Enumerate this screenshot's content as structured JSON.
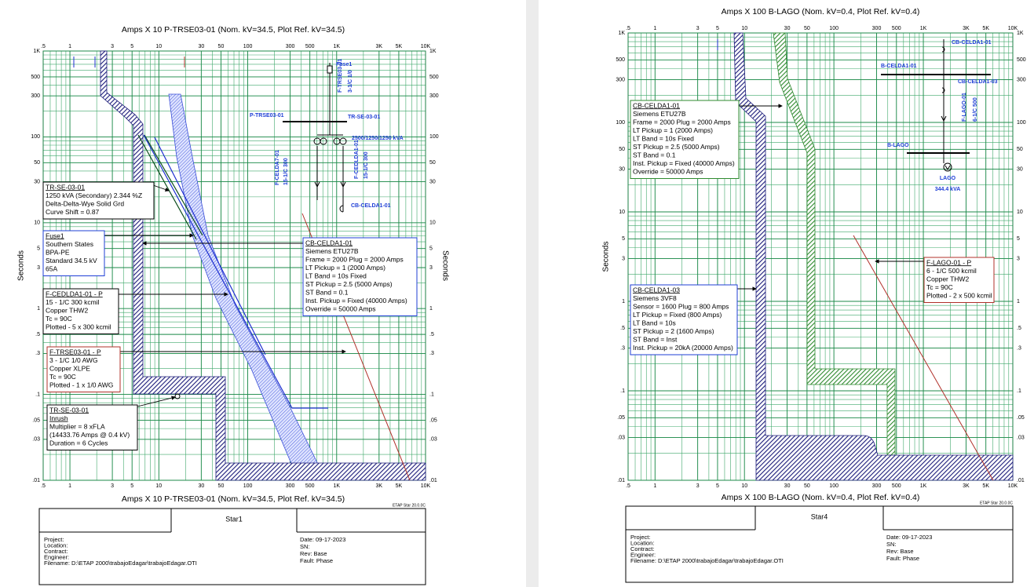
{
  "axes": {
    "x_ticks": [
      {
        "value": 0.5,
        "label": ".5"
      },
      {
        "value": 1,
        "label": "1"
      },
      {
        "value": 3,
        "label": "3"
      },
      {
        "value": 5,
        "label": "5"
      },
      {
        "value": 10,
        "label": "10"
      },
      {
        "value": 30,
        "label": "30"
      },
      {
        "value": 50,
        "label": "50"
      },
      {
        "value": 100,
        "label": "100"
      },
      {
        "value": 300,
        "label": "300"
      },
      {
        "value": 500,
        "label": "500"
      },
      {
        "value": 1000,
        "label": "1K"
      },
      {
        "value": 3000,
        "label": "3K"
      },
      {
        "value": 5000,
        "label": "5K"
      },
      {
        "value": 10000,
        "label": "10K"
      }
    ],
    "y_ticks": [
      {
        "value": 1000,
        "label": "1K"
      },
      {
        "value": 500,
        "label": "500"
      },
      {
        "value": 300,
        "label": "300"
      },
      {
        "value": 100,
        "label": "100"
      },
      {
        "value": 50,
        "label": "50"
      },
      {
        "value": 30,
        "label": "30"
      },
      {
        "value": 10,
        "label": "10"
      },
      {
        "value": 5,
        "label": "5"
      },
      {
        "value": 3,
        "label": "3"
      },
      {
        "value": 1,
        "label": "1"
      },
      {
        "value": 0.5,
        "label": ".5"
      },
      {
        "value": 0.3,
        "label": ".3"
      },
      {
        "value": 0.1,
        "label": ".1"
      },
      {
        "value": 0.05,
        "label": ".05"
      },
      {
        "value": 0.03,
        "label": ".03"
      },
      {
        "value": 0.01,
        "label": ".01"
      }
    ],
    "y_label": "Seconds"
  },
  "plots": [
    {
      "title": "Amps  X  10   P-TRSE03-01 (Nom. kV=34.5, Plot Ref. kV=34.5)",
      "version": "ETAP Star 20.0.0C",
      "labels": [
        {
          "title": "TR-SE-03-01",
          "lines": [
            "1250 kVA (Secondary)  2.344 %Z",
            "Delta-Delta-Wye Solid Grd",
            "Curve Shift = 0.87"
          ]
        },
        {
          "title": "Fuse1",
          "lines": [
            "Southern States",
            "BPA-PE",
            "Standard  34.5 kV",
            "65A"
          ]
        },
        {
          "title": "F-CEDLDA1-01 - P",
          "lines": [
            "15 - 1/C 300 kcmil",
            "Copper  THW2",
            "Tc = 90C",
            "Plotted - 5 x 300 kcmil"
          ]
        },
        {
          "title": "F-TRSE03-01 - P",
          "lines": [
            "3 - 1/C 1/0 AWG",
            "Copper  XLPE",
            "Tc = 90C",
            "Plotted - 1 x 1/0 AWG"
          ]
        },
        {
          "title": "TR-SE-03-01",
          "subtitle": "Inrush",
          "lines": [
            "Multiplier = 8 xFLA",
            "(14433.76 Amps @ 0.4 kV)",
            "Duration = 6 Cycles"
          ]
        },
        {
          "title": "CB-CELDA1-01",
          "lines": [
            "Siemens  ETU27B",
            "Frame = 2000 Plug = 2000 Amps",
            "LT Pickup = 1 (2000 Amps)",
            "LT Band = 10s Fixed",
            "ST Pickup = 2.5 (5000 Amps)",
            "ST Band = 0.1",
            "Inst. Pickup = Fixed (40000 Amps)",
            "Override = 50000 Amps"
          ]
        }
      ],
      "diagram": [
        "Fuse1",
        "F-TRSE03-01",
        "3-1/C 1/0",
        "P-TRSE03-01",
        "TR-SE-03-01",
        "2500/1250/1250 kVA",
        "F-CELDA7-01",
        "15-1/C 300",
        "F-CEDLDA1-01",
        "15-1/C 300",
        "CB-CELDA1-01"
      ],
      "footer": {
        "star": "Star1",
        "left": [
          "Project:",
          "Location:",
          "Contract:",
          "Engineer:",
          "Filename:  D:\\ETAP 2000\\trabajoEdagar\\trabajoEdagar.OTI"
        ],
        "right": [
          "Date:  09-17-2023",
          "SN:",
          "Rev:  Base",
          "Fault:  Phase"
        ]
      }
    },
    {
      "title": "Amps  X  100   B-LAGO (Nom. kV=0.4, Plot Ref. kV=0.4)",
      "version": "ETAP Star 20.0.0C",
      "labels": [
        {
          "title": "CB-CELDA1-01",
          "lines": [
            "Siemens  ETU27B",
            "Frame = 2000 Plug = 2000 Amps",
            "LT Pickup = 1 (2000 Amps)",
            "LT Band = 10s Fixed",
            "ST Pickup = 2.5 (5000 Amps)",
            "ST Band = 0.1",
            "Inst. Pickup = Fixed (40000 Amps)",
            "Override = 50000 Amps"
          ]
        },
        {
          "title": "CB-CELDA1-03",
          "lines": [
            "Siemens  3VF8",
            "Sensor = 1600 Plug = 800 Amps",
            "LT Pickup = Fixed (800 Amps)",
            "LT Band = 10s",
            "ST Pickup = 2 (1600 Amps)",
            "ST Band = Inst",
            "Inst. Pickup = 20kA (20000 Amps)"
          ]
        },
        {
          "title": "F-LAGO-01 - P",
          "lines": [
            "6 - 1/C 500 kcmil",
            "Copper  THW2",
            "Tc = 90C",
            "Plotted - 2 x 500 kcmil"
          ]
        }
      ],
      "diagram": [
        "CB-CELDA1-01",
        "B-CELDA1-01",
        "CB-CELDA1-03",
        "F-LAGO-01",
        "6-1/C 500",
        "B-LAGO",
        "LAGO",
        "344.4 kVA"
      ],
      "footer": {
        "star": "Star4",
        "left": [
          "Project:",
          "Location:",
          "Contract:",
          "Engineer:",
          "Filename:  D:\\ETAP 2000\\trabajoEdagar\\trabajoEdagar.OTI"
        ],
        "right": [
          "Date:  09-17-2023",
          "SN:",
          "Rev:  Base",
          "Fault:  Phase"
        ]
      }
    }
  ]
}
